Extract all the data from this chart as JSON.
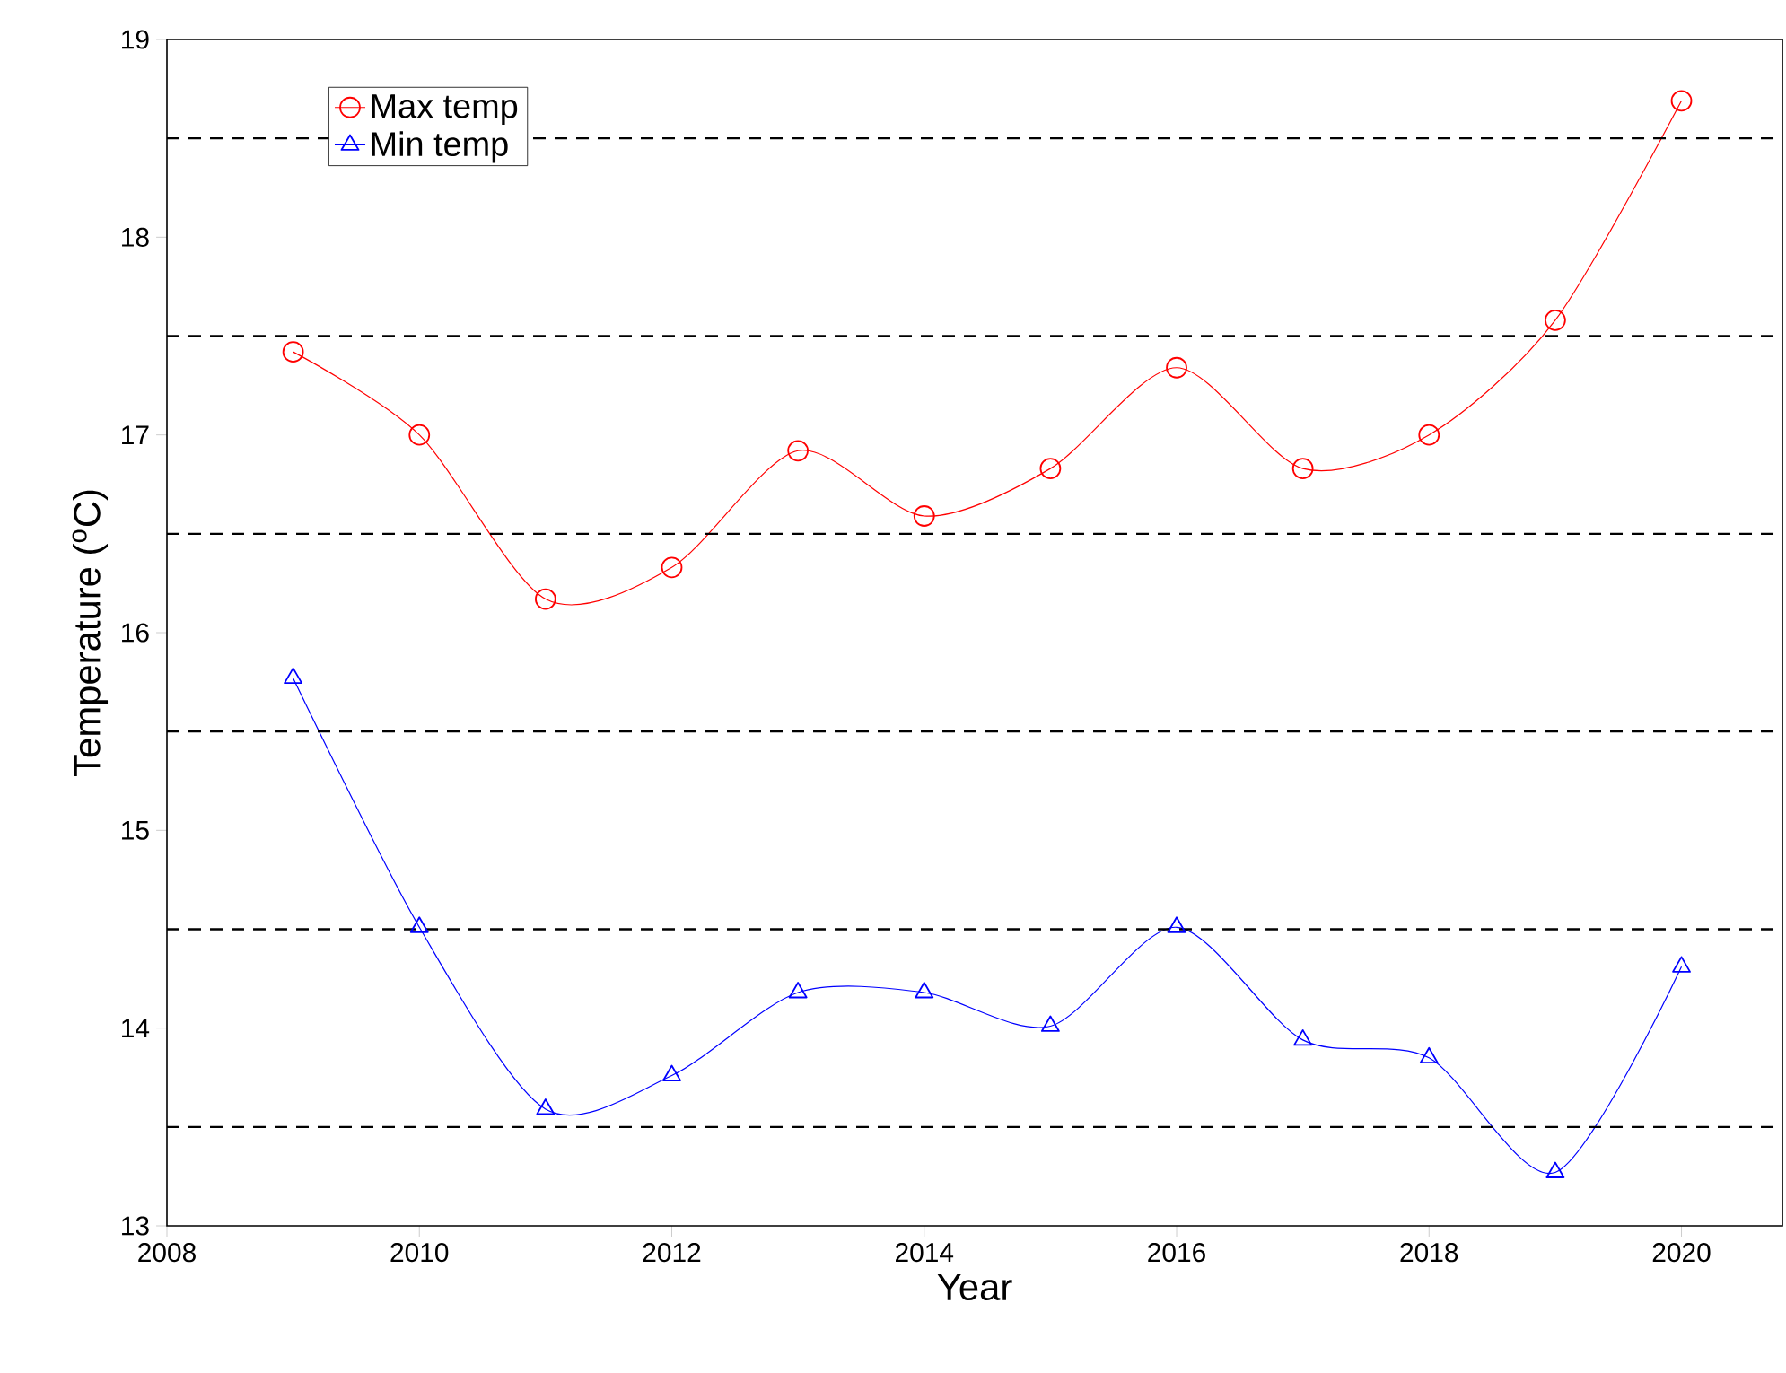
{
  "chart_data": {
    "type": "line",
    "xlabel": "Year",
    "ylabel": "Temperature ($^{o}$C)",
    "x": [
      2009,
      2010,
      2011,
      2012,
      2013,
      2014,
      2015,
      2016,
      2017,
      2018,
      2019,
      2020
    ],
    "series": [
      {
        "name": "Max temp",
        "color": "#ff0000",
        "marker": "circle",
        "values": [
          17.42,
          17.0,
          16.17,
          16.33,
          16.92,
          16.59,
          16.83,
          17.34,
          16.83,
          17.0,
          17.58,
          18.69
        ]
      },
      {
        "name": "Min temp",
        "color": "#0000ff",
        "marker": "triangle",
        "values": [
          15.77,
          14.51,
          13.59,
          13.76,
          14.18,
          14.18,
          14.01,
          14.51,
          13.94,
          13.85,
          13.27,
          14.31
        ]
      }
    ],
    "xlim": [
      2008,
      2020.8
    ],
    "xticks": [
      2008,
      2010,
      2012,
      2014,
      2016,
      2018,
      2020
    ],
    "ylim": [
      13,
      19
    ],
    "yticks": [
      13,
      14,
      15,
      16,
      17,
      18,
      19
    ],
    "ref_lines": [
      {
        "axis": "y",
        "value": 13.5,
        "color": "#000000",
        "line_style": "dashed"
      },
      {
        "axis": "y",
        "value": 14.5,
        "color": "#000000",
        "line_style": "dashed"
      },
      {
        "axis": "y",
        "value": 15.5,
        "color": "#000000",
        "line_style": "dashed"
      },
      {
        "axis": "y",
        "value": 16.5,
        "color": "#000000",
        "line_style": "dashed"
      },
      {
        "axis": "y",
        "value": 17.5,
        "color": "#000000",
        "line_style": "dashed"
      },
      {
        "axis": "y",
        "value": 18.5,
        "color": "#000000",
        "line_style": "dashed"
      }
    ],
    "legend": "top left",
    "grid": false
  }
}
